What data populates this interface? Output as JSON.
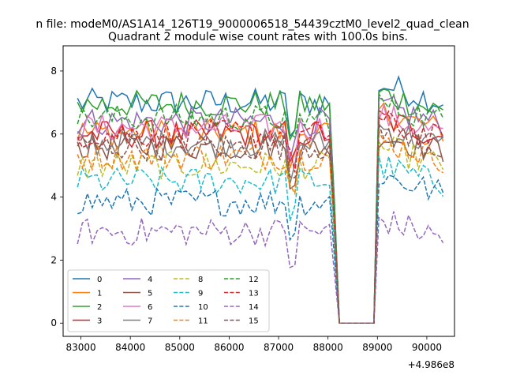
{
  "figure": {
    "suptitle": "n file: modeM0/AS1A14_126T19_9000006518_54439cztM0_level2_quad_clean",
    "title": "Quadrant 2 module wise count rates with 100.0s bins.",
    "x_offset_label": "+4.986e8"
  },
  "chart_data": {
    "type": "line",
    "title": "Quadrant 2 module wise count rates with 100.0s bins.",
    "xlabel": "",
    "ylabel": "",
    "x_offset": 498600000,
    "xlim": [
      82640,
      90560
    ],
    "ylim": [
      -0.42,
      8.8
    ],
    "xticks": [
      83000,
      84000,
      85000,
      86000,
      87000,
      88000,
      89000,
      90000
    ],
    "yticks": [
      0,
      2,
      4,
      6,
      8
    ],
    "grid": false,
    "legend": {
      "position": "lower-left",
      "ncol": 4
    },
    "series": [
      {
        "name": "0",
        "color": "#1f77b4",
        "dash": "solid",
        "base": 7.0,
        "post": 7.6
      },
      {
        "name": "1",
        "color": "#ff7f0e",
        "dash": "solid",
        "base": 6.05,
        "post": 6.7
      },
      {
        "name": "2",
        "color": "#2ca02c",
        "dash": "solid",
        "base": 6.95,
        "post": 7.3
      },
      {
        "name": "3",
        "color": "#d62728",
        "dash": "solid",
        "base": 6.0,
        "post": 6.5
      },
      {
        "name": "4",
        "color": "#9467bd",
        "dash": "solid",
        "base": 6.4,
        "post": 6.9
      },
      {
        "name": "5",
        "color": "#8c564b",
        "dash": "solid",
        "base": 5.6,
        "post": 6.0
      },
      {
        "name": "6",
        "color": "#e377c2",
        "dash": "solid",
        "base": 6.2,
        "post": 6.6
      },
      {
        "name": "7",
        "color": "#7f7f7f",
        "dash": "solid",
        "base": 5.7,
        "post": 6.2
      },
      {
        "name": "8",
        "color": "#bcbd22",
        "dash": "dashed",
        "base": 5.0,
        "post": 5.6
      },
      {
        "name": "9",
        "color": "#17becf",
        "dash": "dashed",
        "base": 4.5,
        "post": 5.0
      },
      {
        "name": "10",
        "color": "#1f77b4",
        "dash": "dashed",
        "base": 3.85,
        "post": 4.7
      },
      {
        "name": "11",
        "color": "#ff7f0e",
        "dash": "dashed",
        "base": 5.3,
        "post": 5.8
      },
      {
        "name": "12",
        "color": "#2ca02c",
        "dash": "dashed",
        "base": 6.5,
        "post": 7.0
      },
      {
        "name": "13",
        "color": "#d62728",
        "dash": "dashed",
        "base": 6.0,
        "post": 6.4
      },
      {
        "name": "14",
        "color": "#9467bd",
        "dash": "dashed",
        "base": 2.9,
        "post": 3.3
      },
      {
        "name": "15",
        "color": "#8c564b",
        "dash": "dashed",
        "base": 5.6,
        "post": 6.1
      }
    ],
    "time_grid": {
      "start": 82930,
      "step": 100,
      "gap_start": 88230,
      "gap_end": 88930,
      "end": 90330
    }
  }
}
